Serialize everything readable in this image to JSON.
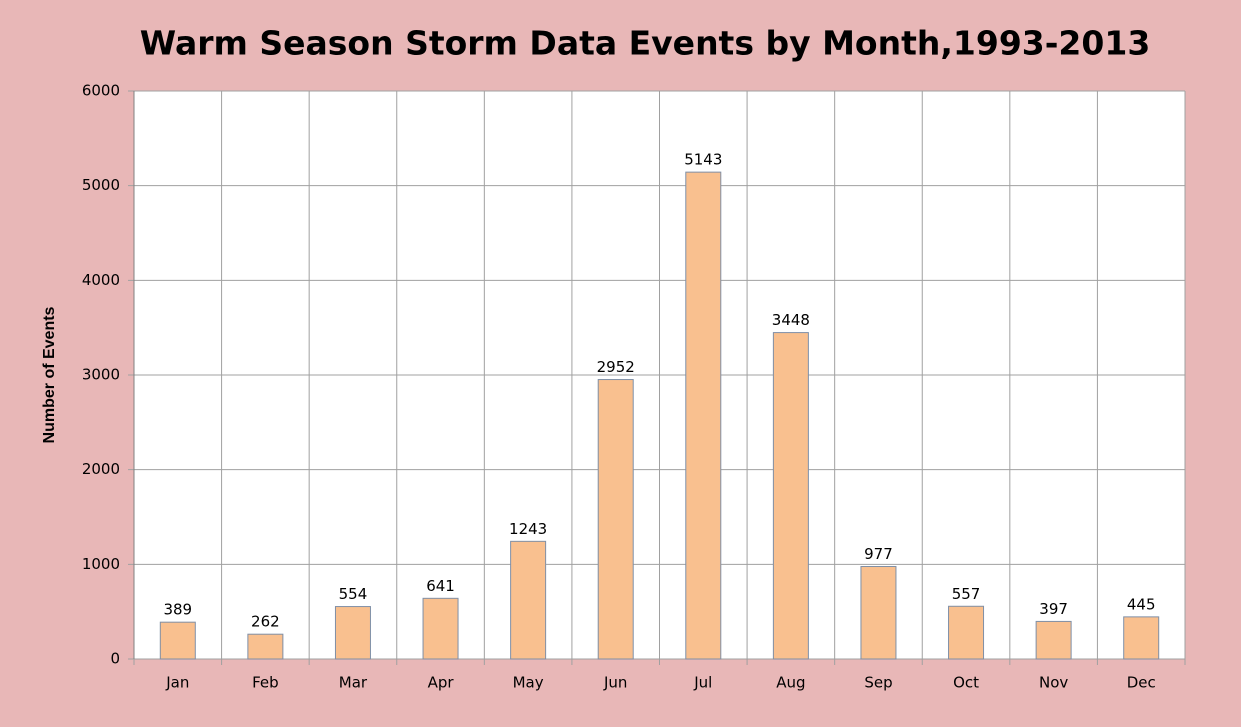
{
  "chart_data": {
    "type": "bar",
    "title": "Warm Season Storm Data Events by Month,1993-2013",
    "y_label": "Number of Events",
    "categories": [
      "Jan",
      "Feb",
      "Mar",
      "Apr",
      "May",
      "Jun",
      "Jul",
      "Aug",
      "Sep",
      "Oct",
      "Nov",
      "Dec"
    ],
    "values": [
      389,
      262,
      554,
      641,
      1243,
      2952,
      5143,
      3448,
      977,
      557,
      397,
      445
    ],
    "color": "#f9c08f",
    "ylim": [
      0,
      6000
    ],
    "yticks": [
      0,
      1000,
      2000,
      3000,
      4000,
      5000,
      6000
    ],
    "grid": true
  }
}
